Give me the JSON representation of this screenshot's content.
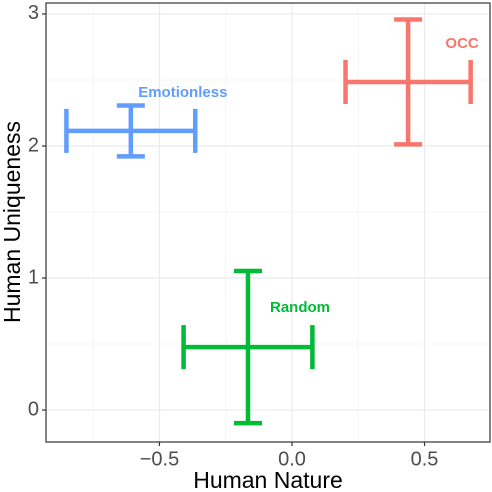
{
  "chart_data": {
    "type": "scatter",
    "xlabel": "Human Nature",
    "ylabel": "Human Uniqueness",
    "xlim": [
      -0.928,
      0.747
    ],
    "ylim": [
      -0.242,
      3.083
    ],
    "xticks": [
      {
        "value": -0.5,
        "label": "−0.5"
      },
      {
        "value": 0,
        "label": "0.0"
      },
      {
        "value": 0.5,
        "label": "0.5"
      }
    ],
    "yticks": [
      0,
      1,
      2,
      3
    ],
    "xminor": [
      -0.75,
      -0.25,
      0.25
    ],
    "yminor": [
      0.5,
      1.5,
      2.5
    ],
    "grid": true,
    "series": [
      {
        "name": "Emotionless",
        "color": "#619cff",
        "x": -0.608,
        "y": 2.114,
        "xerr": 0.243,
        "yerr": 0.193
      },
      {
        "name": "OCC",
        "color": "#f8766d",
        "x": 0.438,
        "y": 2.485,
        "xerr": 0.236,
        "yerr": 0.473
      },
      {
        "name": "Random",
        "color": "#00ba38",
        "x": -0.166,
        "y": 0.477,
        "xerr": 0.243,
        "yerr": 0.576
      }
    ]
  }
}
